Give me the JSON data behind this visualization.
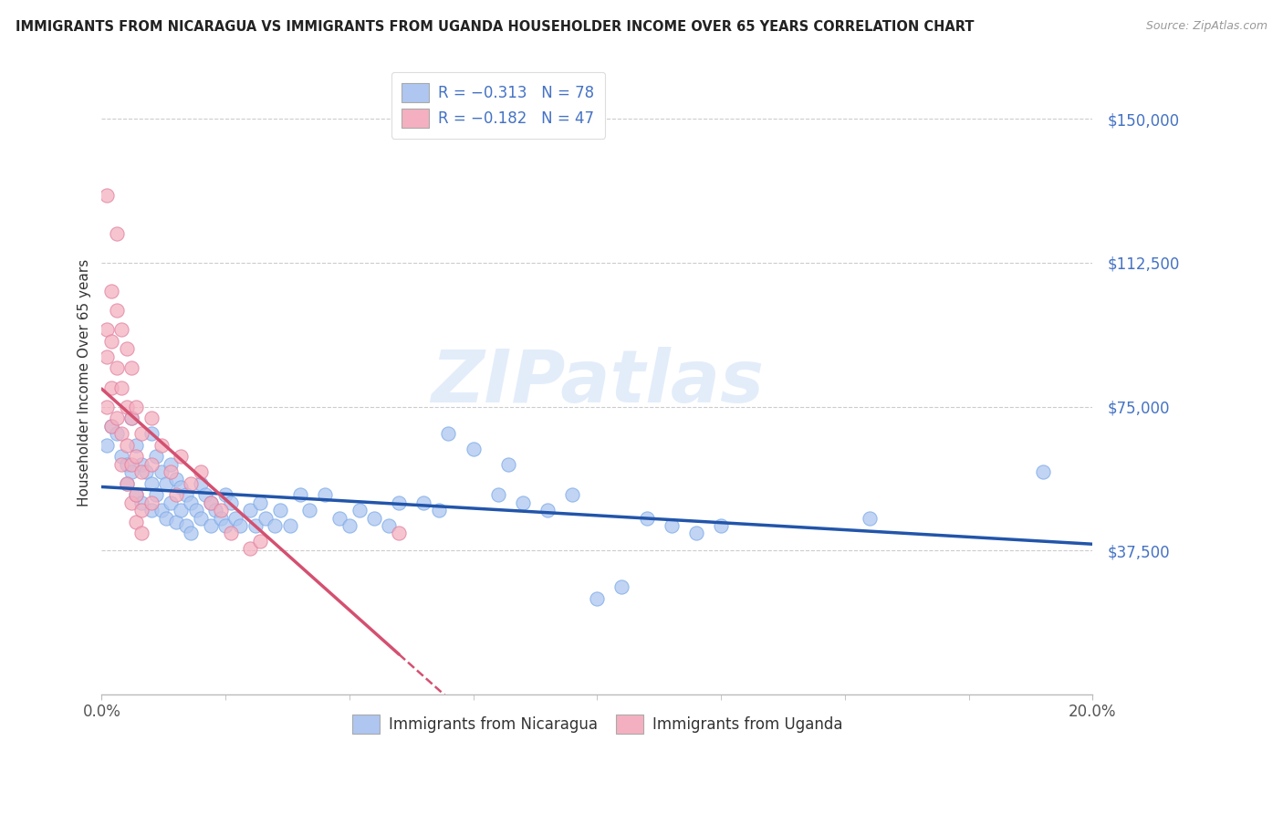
{
  "title": "IMMIGRANTS FROM NICARAGUA VS IMMIGRANTS FROM UGANDA HOUSEHOLDER INCOME OVER 65 YEARS CORRELATION CHART",
  "source": "Source: ZipAtlas.com",
  "ylabel": "Householder Income Over 65 years",
  "ytick_labels": [
    "$37,500",
    "$75,000",
    "$112,500",
    "$150,000"
  ],
  "ytick_values": [
    37500,
    75000,
    112500,
    150000
  ],
  "ymin": 0,
  "ymax": 162500,
  "xmin": 0.0,
  "xmax": 0.2,
  "watermark": "ZIPatlas",
  "nicaragua_color": "#aec6f0",
  "nicaragua_line_color": "#2255aa",
  "uganda_color": "#f4b0c0",
  "uganda_line_color": "#d45070",
  "legend_top": [
    {
      "label": "R = −0.313   N = 78",
      "color": "#aec6f0"
    },
    {
      "label": "R = −0.182   N = 47",
      "color": "#f4b0c0"
    }
  ],
  "legend_bottom": [
    {
      "label": "Immigrants from Nicaragua",
      "color": "#aec6f0"
    },
    {
      "label": "Immigrants from Uganda",
      "color": "#f4b0c0"
    }
  ],
  "nicaragua_points": [
    [
      0.001,
      65000
    ],
    [
      0.002,
      70000
    ],
    [
      0.003,
      68000
    ],
    [
      0.004,
      62000
    ],
    [
      0.005,
      60000
    ],
    [
      0.005,
      55000
    ],
    [
      0.006,
      72000
    ],
    [
      0.006,
      58000
    ],
    [
      0.007,
      65000
    ],
    [
      0.007,
      52000
    ],
    [
      0.008,
      60000
    ],
    [
      0.008,
      50000
    ],
    [
      0.009,
      58000
    ],
    [
      0.01,
      68000
    ],
    [
      0.01,
      55000
    ],
    [
      0.01,
      48000
    ],
    [
      0.011,
      62000
    ],
    [
      0.011,
      52000
    ],
    [
      0.012,
      58000
    ],
    [
      0.012,
      48000
    ],
    [
      0.013,
      55000
    ],
    [
      0.013,
      46000
    ],
    [
      0.014,
      60000
    ],
    [
      0.014,
      50000
    ],
    [
      0.015,
      56000
    ],
    [
      0.015,
      45000
    ],
    [
      0.016,
      54000
    ],
    [
      0.016,
      48000
    ],
    [
      0.017,
      52000
    ],
    [
      0.017,
      44000
    ],
    [
      0.018,
      50000
    ],
    [
      0.018,
      42000
    ],
    [
      0.019,
      48000
    ],
    [
      0.02,
      55000
    ],
    [
      0.02,
      46000
    ],
    [
      0.021,
      52000
    ],
    [
      0.022,
      50000
    ],
    [
      0.022,
      44000
    ],
    [
      0.023,
      48000
    ],
    [
      0.024,
      46000
    ],
    [
      0.025,
      52000
    ],
    [
      0.025,
      44000
    ],
    [
      0.026,
      50000
    ],
    [
      0.027,
      46000
    ],
    [
      0.028,
      44000
    ],
    [
      0.03,
      48000
    ],
    [
      0.031,
      44000
    ],
    [
      0.032,
      50000
    ],
    [
      0.033,
      46000
    ],
    [
      0.035,
      44000
    ],
    [
      0.036,
      48000
    ],
    [
      0.038,
      44000
    ],
    [
      0.04,
      52000
    ],
    [
      0.042,
      48000
    ],
    [
      0.045,
      52000
    ],
    [
      0.048,
      46000
    ],
    [
      0.05,
      44000
    ],
    [
      0.052,
      48000
    ],
    [
      0.055,
      46000
    ],
    [
      0.058,
      44000
    ],
    [
      0.06,
      50000
    ],
    [
      0.065,
      50000
    ],
    [
      0.068,
      48000
    ],
    [
      0.07,
      68000
    ],
    [
      0.075,
      64000
    ],
    [
      0.08,
      52000
    ],
    [
      0.082,
      60000
    ],
    [
      0.085,
      50000
    ],
    [
      0.09,
      48000
    ],
    [
      0.095,
      52000
    ],
    [
      0.1,
      25000
    ],
    [
      0.105,
      28000
    ],
    [
      0.11,
      46000
    ],
    [
      0.115,
      44000
    ],
    [
      0.12,
      42000
    ],
    [
      0.125,
      44000
    ],
    [
      0.155,
      46000
    ],
    [
      0.19,
      58000
    ]
  ],
  "uganda_points": [
    [
      0.001,
      130000
    ],
    [
      0.001,
      95000
    ],
    [
      0.001,
      88000
    ],
    [
      0.001,
      75000
    ],
    [
      0.002,
      105000
    ],
    [
      0.002,
      92000
    ],
    [
      0.002,
      80000
    ],
    [
      0.002,
      70000
    ],
    [
      0.003,
      120000
    ],
    [
      0.003,
      100000
    ],
    [
      0.003,
      85000
    ],
    [
      0.003,
      72000
    ],
    [
      0.004,
      95000
    ],
    [
      0.004,
      80000
    ],
    [
      0.004,
      68000
    ],
    [
      0.004,
      60000
    ],
    [
      0.005,
      90000
    ],
    [
      0.005,
      75000
    ],
    [
      0.005,
      65000
    ],
    [
      0.005,
      55000
    ],
    [
      0.006,
      85000
    ],
    [
      0.006,
      72000
    ],
    [
      0.006,
      60000
    ],
    [
      0.006,
      50000
    ],
    [
      0.007,
      75000
    ],
    [
      0.007,
      62000
    ],
    [
      0.007,
      52000
    ],
    [
      0.007,
      45000
    ],
    [
      0.008,
      68000
    ],
    [
      0.008,
      58000
    ],
    [
      0.008,
      48000
    ],
    [
      0.008,
      42000
    ],
    [
      0.01,
      72000
    ],
    [
      0.01,
      60000
    ],
    [
      0.01,
      50000
    ],
    [
      0.012,
      65000
    ],
    [
      0.014,
      58000
    ],
    [
      0.015,
      52000
    ],
    [
      0.016,
      62000
    ],
    [
      0.018,
      55000
    ],
    [
      0.02,
      58000
    ],
    [
      0.022,
      50000
    ],
    [
      0.024,
      48000
    ],
    [
      0.026,
      42000
    ],
    [
      0.03,
      38000
    ],
    [
      0.032,
      40000
    ],
    [
      0.06,
      42000
    ]
  ]
}
